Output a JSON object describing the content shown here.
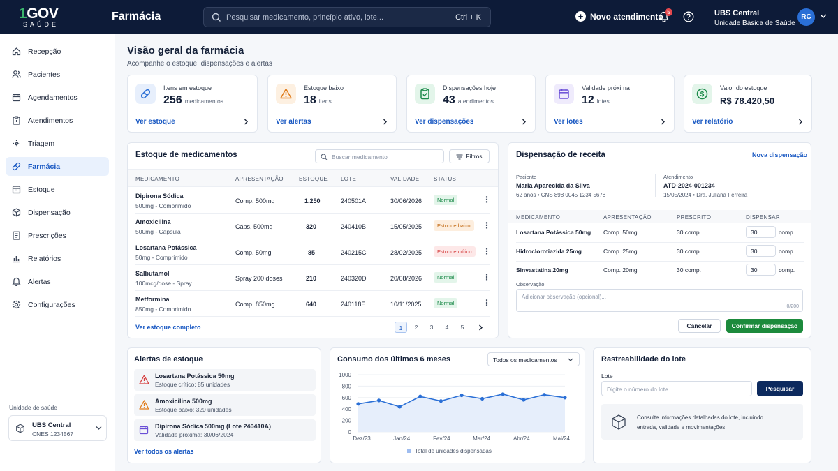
{
  "brand": {
    "logo_main": "GOV",
    "logo_one": "1",
    "logo_sub": "SAÚDE",
    "app_title": "Farmácia"
  },
  "header": {
    "search_placeholder": "Pesquisar medicamento, princípio ativo, lote...",
    "shortcut": "Ctrl + K",
    "new_label": "Novo atendimento",
    "notif_count": "5",
    "unit_name": "UBS Central",
    "unit_type": "Unidade Básica de Saúde",
    "avatar": "RC"
  },
  "sidebar": {
    "items": [
      {
        "label": "Recepção",
        "icon": "home-icon"
      },
      {
        "label": "Pacientes",
        "icon": "users-icon"
      },
      {
        "label": "Agendamentos",
        "icon": "calendar-icon"
      },
      {
        "label": "Atendimentos",
        "icon": "clipboard-icon"
      },
      {
        "label": "Triagem",
        "icon": "triage-icon"
      },
      {
        "label": "Farmácia",
        "icon": "pill-icon"
      },
      {
        "label": "Estoque",
        "icon": "box-icon"
      },
      {
        "label": "Dispensação",
        "icon": "dispense-icon"
      },
      {
        "label": "Prescrições",
        "icon": "prescription-icon"
      },
      {
        "label": "Relatórios",
        "icon": "chart-icon"
      },
      {
        "label": "Alertas",
        "icon": "bell-icon"
      },
      {
        "label": "Configurações",
        "icon": "gear-icon"
      }
    ],
    "unit_label": "Unidade de saúde",
    "unit_name": "UBS Central",
    "unit_cnes": "CNES 1234567"
  },
  "page": {
    "title": "Visão geral da farmácia",
    "subtitle": "Acompanhe o estoque, dispensações e alertas"
  },
  "kpis": [
    {
      "label": "Itens em estoque",
      "value": "256",
      "unit": "medicamentos",
      "link": "Ver estoque",
      "color": "#2a6fd6",
      "bg": "#e7effc"
    },
    {
      "label": "Estoque baixo",
      "value": "18",
      "unit": "itens",
      "link": "Ver alertas",
      "color": "#e07b1a",
      "bg": "#fdf0e1"
    },
    {
      "label": "Dispensações hoje",
      "value": "43",
      "unit": "atendimentos",
      "link": "Ver dispensações",
      "color": "#1c8a4a",
      "bg": "#e3f5ea"
    },
    {
      "label": "Validade próxima",
      "value": "12",
      "unit": "lotes",
      "link": "Ver lotes",
      "color": "#6a4fd6",
      "bg": "#efebfc"
    },
    {
      "label": "Valor do estoque",
      "value": "R$ 78.420,50",
      "unit": "",
      "link": "Ver relatório",
      "color": "#1c8a4a",
      "bg": "#e3f5ea"
    }
  ],
  "stock": {
    "title": "Estoque de medicamentos",
    "search_placeholder": "Buscar medicamento",
    "filters": "Filtros",
    "headers": [
      "MEDICAMENTO",
      "APRESENTAÇÃO",
      "ESTOQUE",
      "LOTE",
      "VALIDADE",
      "STATUS"
    ],
    "rows": [
      {
        "name": "Dipirona Sódica",
        "desc": "500mg - Comprimido",
        "pres": "Comp. 500mg",
        "qty": "1.250",
        "lote": "240501A",
        "val": "30/06/2026",
        "status": "Normal",
        "kind": "ok"
      },
      {
        "name": "Amoxicilina",
        "desc": "500mg - Cápsula",
        "pres": "Cáps. 500mg",
        "qty": "320",
        "lote": "240410B",
        "val": "15/05/2025",
        "status": "Estoque baixo",
        "kind": "low"
      },
      {
        "name": "Losartana Potássica",
        "desc": "50mg - Comprimido",
        "pres": "Comp. 50mg",
        "qty": "85",
        "lote": "240215C",
        "val": "28/02/2025",
        "status": "Estoque crítico",
        "kind": "crit"
      },
      {
        "name": "Salbutamol",
        "desc": "100mcg/dose - Spray",
        "pres": "Spray 200 doses",
        "qty": "210",
        "lote": "240320D",
        "val": "20/08/2026",
        "status": "Normal",
        "kind": "ok"
      },
      {
        "name": "Metformina",
        "desc": "850mg - Comprimido",
        "pres": "Comp. 850mg",
        "qty": "640",
        "lote": "240118E",
        "val": "10/11/2025",
        "status": "Normal",
        "kind": "ok"
      }
    ],
    "footer_link": "Ver estoque completo",
    "pages": [
      "1",
      "2",
      "3",
      "4",
      "5"
    ]
  },
  "dispense": {
    "title": "Dispensação de receita",
    "new_link": "Nova dispensação",
    "patient_label": "Paciente",
    "patient_name": "Maria Aparecida da Silva",
    "patient_info": "62 anos • CNS 898 0045 1234 5678",
    "att_label": "Atendimento",
    "att_id": "ATD-2024-001234",
    "att_info": "15/05/2024 • Dra. Juliana Ferreira",
    "headers": [
      "MEDICAMENTO",
      "APRESENTAÇÃO",
      "PRESCRITO",
      "DISPENSAR"
    ],
    "rows": [
      {
        "name": "Losartana Potássica 50mg",
        "pres": "Comp. 50mg",
        "presc": "30 comp.",
        "qty": "30",
        "unit": "comp."
      },
      {
        "name": "Hidroclorotiazida 25mg",
        "pres": "Comp. 25mg",
        "presc": "30 comp.",
        "qty": "30",
        "unit": "comp."
      },
      {
        "name": "Sinvastatina 20mg",
        "pres": "Comp. 20mg",
        "presc": "30 comp.",
        "qty": "30",
        "unit": "comp."
      }
    ],
    "obs_label": "Observação",
    "obs_placeholder": "Adicionar observação (opcional)...",
    "obs_count": "0/200",
    "cancel": "Cancelar",
    "confirm": "Confirmar dispensação"
  },
  "alerts": {
    "title": "Alertas de estoque",
    "items": [
      {
        "title": "Losartana Potássica 50mg",
        "desc": "Estoque crítico: 85 unidades",
        "icon": "warning-red-icon"
      },
      {
        "title": "Amoxicilina 500mg",
        "desc": "Estoque baixo: 320 unidades",
        "icon": "warning-orange-icon"
      },
      {
        "title": "Dipirona Sódica 500mg (Lote 240410A)",
        "desc": "Validade próxima: 30/06/2024",
        "icon": "calendar-purple-icon"
      }
    ],
    "link": "Ver todos os alertas"
  },
  "consumption": {
    "title": "Consumo dos últimos 6 meses",
    "select": "Todos os medicamentos",
    "legend": "Total de unidades dispensadas"
  },
  "chart_data": {
    "type": "area",
    "title": "Consumo dos últimos 6 meses",
    "ylim": [
      0,
      1000
    ],
    "yticks": [
      "0",
      "200",
      "400",
      "600",
      "800",
      "1000"
    ],
    "xticks": [
      "Dez/23",
      "Jan/24",
      "Fev/24",
      "Mar/24",
      "Abr/24",
      "Mai/24"
    ],
    "series": [
      {
        "name": "Total de unidades dispensadas",
        "values": [
          490,
          550,
          440,
          620,
          540,
          640,
          580,
          660,
          560,
          650,
          600
        ]
      }
    ]
  },
  "trace": {
    "title": "Rastreabilidade do lote",
    "lote_label": "Lote",
    "placeholder": "Digite o número do lote",
    "button": "Pesquisar",
    "info": "Consulte informações detalhadas do lote, incluindo",
    "info2": "entrada, validade e movimentações."
  }
}
